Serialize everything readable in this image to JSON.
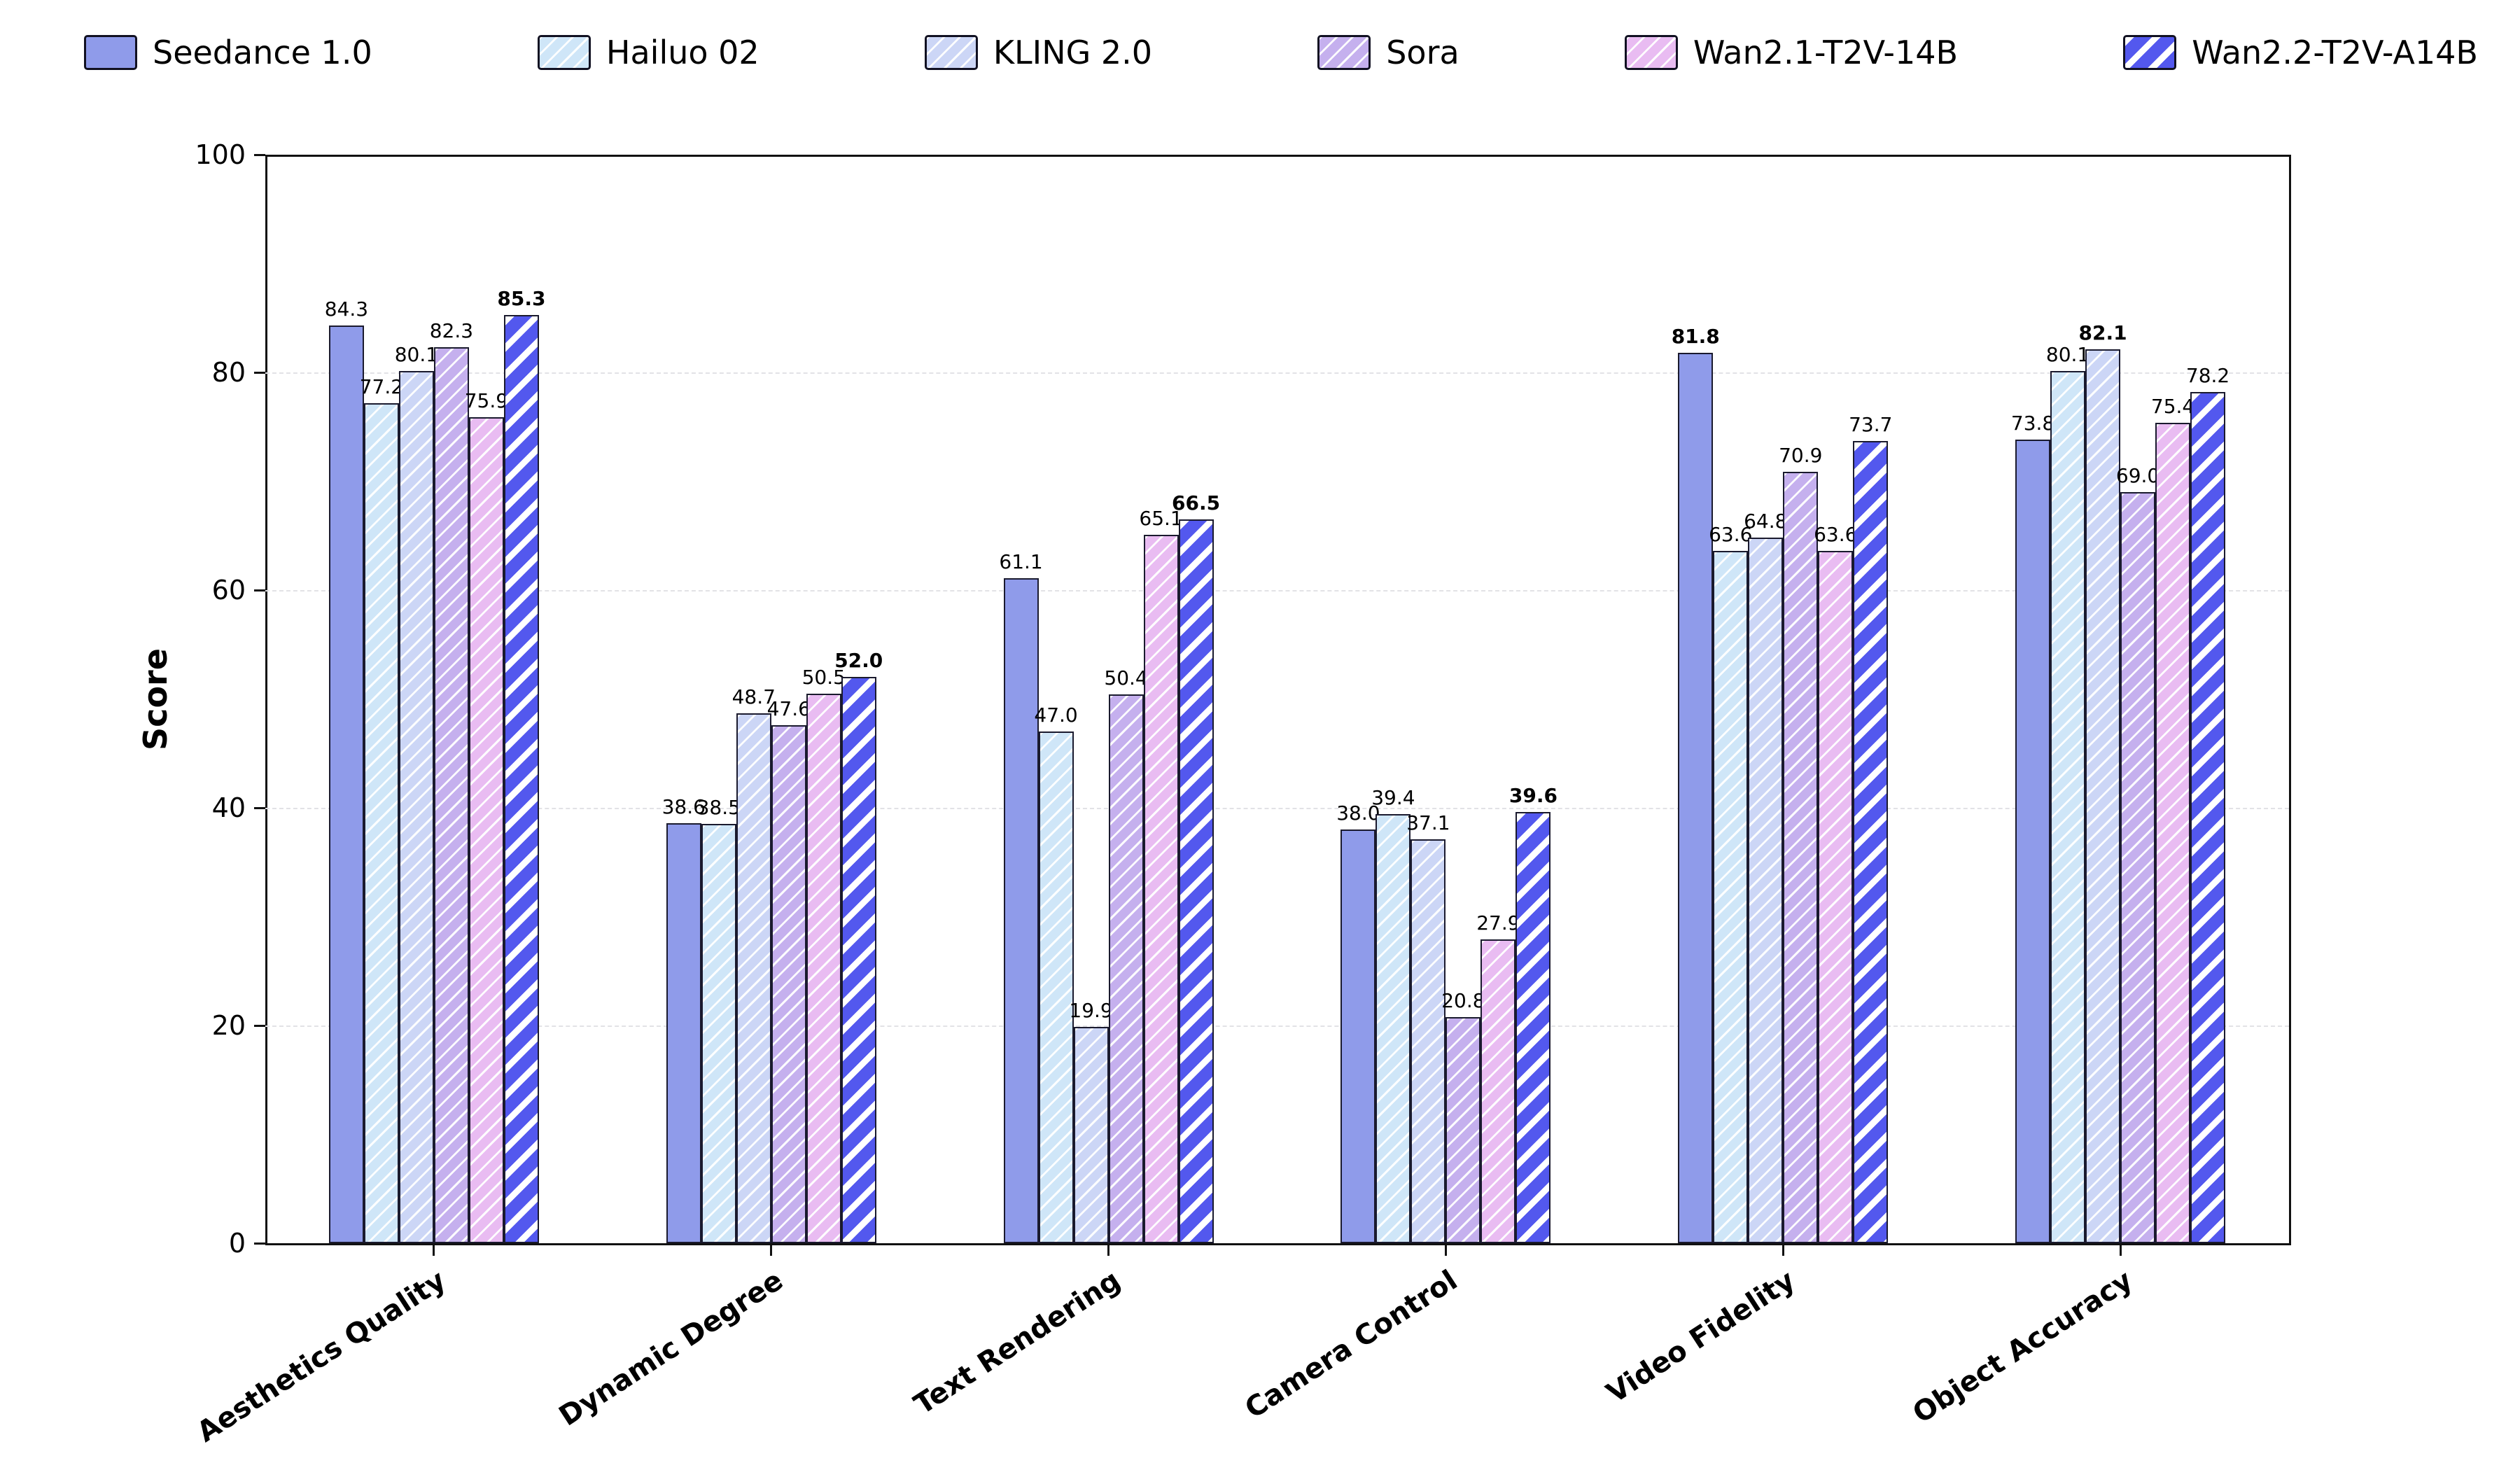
{
  "chart_data": {
    "type": "bar",
    "title": "",
    "xlabel": "",
    "ylabel": "Score",
    "ylim": [
      0,
      100
    ],
    "yticks": [
      0,
      20,
      40,
      60,
      80,
      100
    ],
    "grid": "dashed-horizontal",
    "legend_position": "top",
    "bold_max_per_group": true,
    "background": "#ffffff",
    "bar_edge_color": "#1a1a2e",
    "categories": [
      "Aesthetics Quality",
      "Dynamic Degree",
      "Text Rendering",
      "Camera Control",
      "Video Fidelity",
      "Object Accuracy"
    ],
    "series": [
      {
        "name": "Seedance 1.0",
        "color": "#8f9bea",
        "hatch": "none",
        "values": [
          84.3,
          38.6,
          61.1,
          38.0,
          81.8,
          73.8
        ]
      },
      {
        "name": "Hailuo 02",
        "color": "#cfe6f8",
        "hatch": "light",
        "values": [
          77.2,
          38.5,
          47.0,
          39.4,
          63.6,
          80.1
        ]
      },
      {
        "name": "KLING 2.0",
        "color": "#ccd6f6",
        "hatch": "light",
        "values": [
          80.1,
          48.7,
          19.9,
          37.1,
          64.8,
          82.1
        ]
      },
      {
        "name": "Sora",
        "color": "#c5b0ee",
        "hatch": "light",
        "values": [
          82.3,
          47.6,
          50.4,
          20.8,
          70.9,
          69.0
        ]
      },
      {
        "name": "Wan2.1-T2V-14B",
        "color": "#e9bcf2",
        "hatch": "light",
        "values": [
          75.9,
          50.5,
          65.1,
          27.9,
          63.6,
          75.4
        ]
      },
      {
        "name": "Wan2.2-T2V-A14B",
        "color": "#5358ee",
        "hatch": "bold",
        "values": [
          85.3,
          52.0,
          66.5,
          39.6,
          73.7,
          78.2
        ]
      }
    ]
  }
}
